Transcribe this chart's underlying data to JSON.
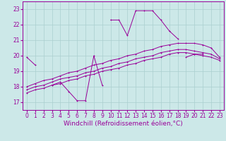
{
  "xlabel": "Windchill (Refroidissement éolien,°C)",
  "background_color": "#cce8e8",
  "line_color": "#990099",
  "xlim": [
    -0.5,
    23.5
  ],
  "ylim": [
    16.5,
    23.5
  ],
  "yticks": [
    17,
    18,
    19,
    20,
    21,
    22,
    23
  ],
  "xticks": [
    0,
    1,
    2,
    3,
    4,
    5,
    6,
    7,
    8,
    9,
    10,
    11,
    12,
    13,
    14,
    15,
    16,
    17,
    18,
    19,
    20,
    21,
    22,
    23
  ],
  "series": [
    [
      19.9,
      19.4,
      null,
      18.1,
      18.3,
      17.7,
      17.1,
      17.1,
      20.0,
      18.1,
      null,
      null,
      null,
      null,
      null,
      null,
      null,
      null,
      null,
      19.9,
      20.1,
      20.1,
      null,
      null
    ],
    [
      null,
      null,
      null,
      null,
      null,
      null,
      null,
      null,
      null,
      null,
      22.3,
      22.3,
      21.3,
      22.9,
      22.9,
      22.9,
      22.3,
      21.6,
      21.1,
      null,
      null,
      null,
      null,
      null
    ],
    [
      null,
      null,
      null,
      null,
      null,
      null,
      null,
      null,
      null,
      null,
      null,
      null,
      null,
      null,
      null,
      null,
      null,
      null,
      null,
      null,
      20.1,
      null,
      null,
      null
    ],
    [
      18.0,
      18.2,
      18.4,
      18.5,
      18.7,
      18.9,
      19.0,
      19.2,
      19.4,
      19.5,
      19.7,
      19.8,
      20.0,
      20.1,
      20.3,
      20.4,
      20.6,
      20.7,
      20.8,
      20.8,
      20.8,
      20.7,
      20.5,
      19.9
    ],
    [
      17.8,
      18.0,
      18.1,
      18.3,
      18.5,
      18.6,
      18.7,
      18.9,
      19.0,
      19.2,
      19.3,
      19.5,
      19.6,
      19.8,
      19.9,
      20.0,
      20.2,
      20.3,
      20.4,
      20.4,
      20.3,
      20.2,
      20.1,
      19.8
    ],
    [
      17.6,
      17.8,
      17.9,
      18.1,
      18.2,
      18.4,
      18.5,
      18.7,
      18.8,
      19.0,
      19.1,
      19.2,
      19.4,
      19.5,
      19.7,
      19.8,
      19.9,
      20.1,
      20.2,
      20.2,
      20.1,
      20.0,
      19.9,
      19.7
    ]
  ],
  "grid_color": "#aacfcf",
  "tick_fontsize": 5.5,
  "xlabel_fontsize": 6.5
}
